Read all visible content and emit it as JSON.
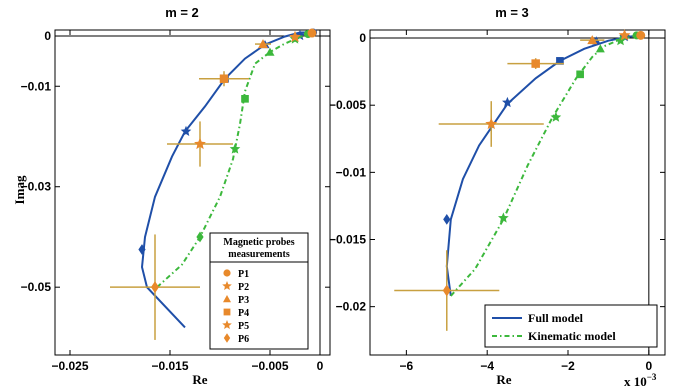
{
  "colors": {
    "full": "#1f4fa8",
    "kinematic": "#3cb83c",
    "probe": "#e8892b",
    "errorbar": "#c8a040"
  },
  "chart_data": [
    {
      "type": "scatter",
      "title": "m = 2",
      "xlabel": "Re",
      "ylabel": "Imag",
      "xlim": [
        -0.0265,
        0.001
      ],
      "ylim": [
        -0.0635,
        0.0012
      ],
      "xticks": [
        -0.025,
        -0.015,
        -0.005,
        0
      ],
      "xtick_labels": [
        "−0.025",
        "−0.015",
        "−0.005",
        "0"
      ],
      "yticks": [
        0,
        -0.01,
        -0.03,
        -0.05
      ],
      "ytick_labels": [
        "0",
        "−0.01",
        "−0.03",
        "−0.05"
      ],
      "grid": false,
      "series": [
        {
          "name": "Full model",
          "style": "solid",
          "curve": [
            [
              -0.0135,
              -0.058
            ],
            [
              -0.0173,
              -0.05
            ],
            [
              -0.0178,
              -0.046
            ],
            [
              -0.0175,
              -0.04
            ],
            [
              -0.0165,
              -0.032
            ],
            [
              -0.0148,
              -0.024
            ],
            [
              -0.0135,
              -0.019
            ],
            [
              -0.0115,
              -0.014
            ],
            [
              -0.0095,
              -0.0085
            ],
            [
              -0.0075,
              -0.0045
            ],
            [
              -0.0055,
              -0.0017
            ],
            [
              -0.0035,
              -0.0001
            ],
            [
              -0.002,
              0.0007
            ],
            [
              -0.0008,
              0.0007
            ]
          ],
          "markers": [
            {
              "shape": "diamond",
              "x": -0.0178,
              "y": -0.0425
            },
            {
              "shape": "star",
              "x": -0.0134,
              "y": -0.019
            },
            {
              "shape": "square",
              "x": -0.0095,
              "y": -0.0085
            },
            {
              "shape": "triangle",
              "x": -0.0055,
              "y": -0.0017
            },
            {
              "shape": "star",
              "x": -0.002,
              "y": 0.0001
            },
            {
              "shape": "circle",
              "x": -0.0007,
              "y": 0.0007
            }
          ]
        },
        {
          "name": "Kinematic model",
          "style": "dashdot",
          "curve": [
            [
              -0.0163,
              -0.05
            ],
            [
              -0.0138,
              -0.0455
            ],
            [
              -0.012,
              -0.04
            ],
            [
              -0.01,
              -0.032
            ],
            [
              -0.0087,
              -0.0245
            ],
            [
              -0.008,
              -0.0175
            ],
            [
              -0.0075,
              -0.011
            ],
            [
              -0.0065,
              -0.0055
            ],
            [
              -0.005,
              -0.0032
            ],
            [
              -0.0037,
              -0.0017
            ],
            [
              -0.0025,
              -0.0006
            ],
            [
              -0.0012,
              0.0004
            ]
          ],
          "markers": [
            {
              "shape": "diamond",
              "x": -0.012,
              "y": -0.04
            },
            {
              "shape": "star",
              "x": -0.0085,
              "y": -0.0225
            },
            {
              "shape": "square",
              "x": -0.0075,
              "y": -0.0125
            },
            {
              "shape": "triangle",
              "x": -0.005,
              "y": -0.0032
            },
            {
              "shape": "star",
              "x": -0.0025,
              "y": -0.0006
            },
            {
              "shape": "circle",
              "x": -0.0012,
              "y": 0.0004
            }
          ]
        },
        {
          "name": "Magnetic probes measurements",
          "points": [
            {
              "label": "P1",
              "shape": "circle",
              "x": -0.0008,
              "y": 0.0006,
              "xerr": 0,
              "yerr": 0
            },
            {
              "label": "P2",
              "shape": "star",
              "x": -0.0025,
              "y": -0.0002,
              "xerr": 0,
              "yerr": 0
            },
            {
              "label": "P3",
              "shape": "triangle",
              "x": -0.0057,
              "y": -0.0016,
              "xerr": 0.0008,
              "yerr": 0
            },
            {
              "label": "P4",
              "shape": "square",
              "x": -0.0096,
              "y": -0.0085,
              "xerr": 0.0025,
              "yerr": 0.0015
            },
            {
              "label": "P5",
              "shape": "star",
              "x": -0.012,
              "y": -0.0215,
              "xerr": 0.0033,
              "yerr": 0.0045
            },
            {
              "label": "P6",
              "shape": "diamond",
              "x": -0.0165,
              "y": -0.05,
              "xerr": 0.0045,
              "yerr": 0.0105
            }
          ]
        }
      ],
      "legend": {
        "title": "Magnetic probes measurements",
        "position": "bottom-right-inner",
        "entries": [
          "P1",
          "P2",
          "P3",
          "P4",
          "P5",
          "P6"
        ]
      }
    },
    {
      "type": "scatter",
      "title": "m = 3",
      "xlabel": "Re",
      "xscale_label": "x 10",
      "xscale_exp": "−3",
      "xlim": [
        -0.0069,
        0.0004
      ],
      "ylim": [
        -0.0236,
        0.0006
      ],
      "xticks": [
        -0.006,
        -0.004,
        -0.002,
        0
      ],
      "xtick_labels": [
        "−6",
        "−4",
        "−2",
        "0"
      ],
      "yticks": [
        0,
        -0.005,
        -0.01,
        -0.015,
        -0.02
      ],
      "ytick_labels": [
        "0",
        "−0.005",
        "−0.01",
        "−0.015",
        "−0.02"
      ],
      "grid": false,
      "series": [
        {
          "name": "Full model",
          "style": "solid",
          "curve": [
            [
              -0.0049,
              -0.0192
            ],
            [
              -0.005,
              -0.017
            ],
            [
              -0.0049,
              -0.0135
            ],
            [
              -0.0046,
              -0.0105
            ],
            [
              -0.0042,
              -0.008
            ],
            [
              -0.0035,
              -0.0049
            ],
            [
              -0.0028,
              -0.003
            ],
            [
              -0.0022,
              -0.0017
            ],
            [
              -0.0016,
              -0.0008
            ],
            [
              -0.001,
              -0.0002
            ],
            [
              -0.0005,
              0.0001
            ],
            [
              -0.0002,
              0.0002
            ]
          ],
          "markers": [
            {
              "shape": "diamond",
              "x": -0.005,
              "y": -0.0135
            },
            {
              "shape": "star",
              "x": -0.0035,
              "y": -0.0048
            },
            {
              "shape": "square",
              "x": -0.0022,
              "y": -0.0017
            },
            {
              "shape": "triangle",
              "x": -0.0013,
              "y": -0.0002
            },
            {
              "shape": "star",
              "x": -0.0006,
              "y": 0.0001
            },
            {
              "shape": "circle",
              "x": -0.0002,
              "y": 0.0002
            }
          ]
        },
        {
          "name": "Kinematic model",
          "style": "dashdot",
          "curve": [
            [
              -0.0049,
              -0.0192
            ],
            [
              -0.0043,
              -0.0172
            ],
            [
              -0.0036,
              -0.0135
            ],
            [
              -0.003,
              -0.0095
            ],
            [
              -0.0024,
              -0.006
            ],
            [
              -0.0018,
              -0.003
            ],
            [
              -0.0014,
              -0.0014
            ],
            [
              -0.0011,
              -0.0006
            ],
            [
              -0.0007,
              -0.0001
            ],
            [
              -0.0003,
              0.0002
            ]
          ],
          "markers": [
            {
              "shape": "star",
              "x": -0.0036,
              "y": -0.0134
            },
            {
              "shape": "star",
              "x": -0.0023,
              "y": -0.0059
            },
            {
              "shape": "square",
              "x": -0.0017,
              "y": -0.0027
            },
            {
              "shape": "triangle",
              "x": -0.0012,
              "y": -0.0008
            },
            {
              "shape": "star",
              "x": -0.0007,
              "y": -0.0002
            },
            {
              "shape": "circle",
              "x": -0.0003,
              "y": 0.0002
            }
          ]
        },
        {
          "name": "Magnetic probes measurements",
          "points": [
            {
              "label": "P1",
              "shape": "circle",
              "x": -0.0002,
              "y": 0.0002,
              "xerr": 0,
              "yerr": 0
            },
            {
              "label": "P2",
              "shape": "star",
              "x": -0.0006,
              "y": 0.0002,
              "xerr": 0,
              "yerr": 0
            },
            {
              "label": "P3",
              "shape": "triangle",
              "x": -0.0014,
              "y": -0.00015,
              "xerr": 0.0003,
              "yerr": 0
            },
            {
              "label": "P4",
              "shape": "square",
              "x": -0.0028,
              "y": -0.0019,
              "xerr": 0.0007,
              "yerr": 0.0004
            },
            {
              "label": "P5",
              "shape": "star",
              "x": -0.0039,
              "y": -0.0064,
              "xerr": 0.0013,
              "yerr": 0.0017
            },
            {
              "label": "P6",
              "shape": "diamond",
              "x": -0.005,
              "y": -0.0188,
              "xerr": 0.0013,
              "yerr": 0.003
            }
          ]
        }
      ],
      "legend": {
        "position": "bottom-right-inner",
        "entries": [
          "Full model",
          "Kinematic model"
        ]
      }
    }
  ]
}
